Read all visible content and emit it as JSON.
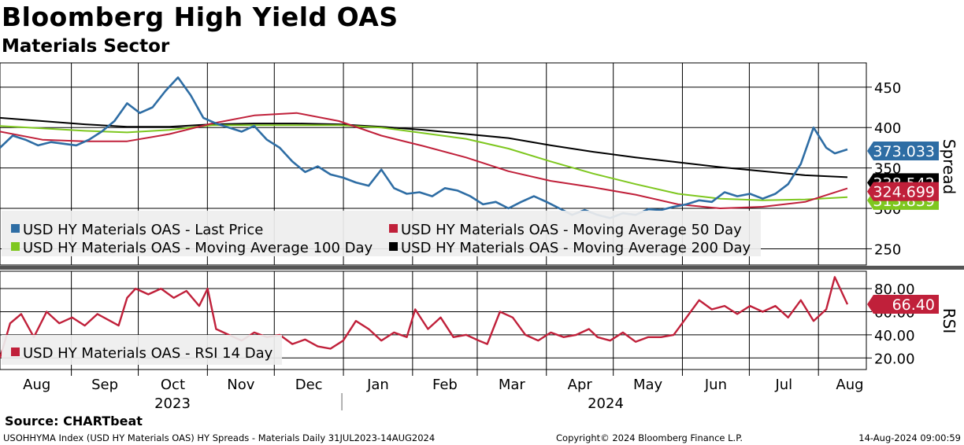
{
  "header": {
    "title": "Bloomberg High Yield OAS",
    "subtitle": "Materials Sector"
  },
  "source": "Source: CHARTbeat",
  "footer": {
    "left": "USOHHYMA Index (USD HY Materials OAS) HY Spreads - Materials  Daily 31JUL2023-14AUG2024",
    "middle": "Copyright© 2024 Bloomberg Finance L.P.",
    "right": "14-Aug-2024 09:00:59"
  },
  "colors": {
    "last": "#2e6da4",
    "ma50": "#c0203a",
    "ma100": "#7ec71f",
    "ma200": "#000000",
    "rsi": "#c0203a"
  },
  "chart_data": [
    {
      "type": "line",
      "panel": "main",
      "ylabel": "Spread",
      "ylim": [
        230,
        480
      ],
      "yticks": [
        250,
        300,
        350,
        400,
        450
      ],
      "x_start": "2023-07-31",
      "x_end": "2024-08-14",
      "month_labels": [
        "Aug",
        "Sep",
        "Oct",
        "Nov",
        "Dec",
        "Jan",
        "Feb",
        "Mar",
        "Apr",
        "May",
        "Jun",
        "Jul",
        "Aug"
      ],
      "year_labels": [
        "2023",
        "2024"
      ],
      "legend": [
        "USD HY Materials OAS - Last Price",
        "USD HY Materials OAS - Moving Average 50 Day",
        "USD HY Materials OAS - Moving Average 100 Day",
        "USD HY Materials OAS - Moving Average 200 Day"
      ],
      "last_values": [
        {
          "label": "373.033",
          "series": "last"
        },
        {
          "label": "338.542",
          "series": "ma200"
        },
        {
          "label": "324.699",
          "series": "ma50"
        },
        {
          "label": "313.839",
          "series": "ma100"
        }
      ],
      "series": [
        {
          "name": "USD HY Materials OAS - Last Price",
          "key": "last",
          "x": [
            0,
            0.015,
            0.03,
            0.045,
            0.06,
            0.075,
            0.09,
            0.105,
            0.12,
            0.135,
            0.15,
            0.165,
            0.18,
            0.195,
            0.21,
            0.225,
            0.24,
            0.255,
            0.27,
            0.285,
            0.3,
            0.315,
            0.33,
            0.345,
            0.36,
            0.375,
            0.39,
            0.405,
            0.42,
            0.435,
            0.45,
            0.465,
            0.48,
            0.495,
            0.51,
            0.525,
            0.54,
            0.555,
            0.57,
            0.585,
            0.6,
            0.615,
            0.63,
            0.645,
            0.66,
            0.675,
            0.69,
            0.705,
            0.72,
            0.735,
            0.75,
            0.765,
            0.78,
            0.795,
            0.81,
            0.825,
            0.84,
            0.855,
            0.87,
            0.885,
            0.9,
            0.915,
            0.93,
            0.945,
            0.96,
            0.975,
            0.985,
            1.0
          ],
          "values": [
            375,
            390,
            385,
            378,
            382,
            380,
            378,
            385,
            395,
            408,
            430,
            418,
            425,
            445,
            462,
            440,
            412,
            405,
            400,
            395,
            402,
            385,
            375,
            358,
            345,
            352,
            342,
            338,
            332,
            328,
            348,
            325,
            318,
            320,
            315,
            325,
            322,
            315,
            305,
            308,
            300,
            308,
            315,
            308,
            300,
            292,
            298,
            292,
            288,
            294,
            292,
            299,
            298,
            302,
            305,
            310,
            308,
            320,
            315,
            318,
            312,
            318,
            330,
            355,
            400,
            375,
            368,
            373.033
          ]
        },
        {
          "name": "USD HY Materials OAS - Moving Average 50 Day",
          "key": "ma50",
          "x": [
            0,
            0.05,
            0.1,
            0.15,
            0.2,
            0.25,
            0.3,
            0.35,
            0.4,
            0.45,
            0.5,
            0.55,
            0.6,
            0.65,
            0.7,
            0.75,
            0.8,
            0.85,
            0.9,
            0.95,
            1.0
          ],
          "values": [
            395,
            385,
            383,
            383,
            392,
            405,
            415,
            418,
            408,
            390,
            377,
            363,
            346,
            334,
            326,
            317,
            305,
            300,
            302,
            308,
            324.699
          ]
        },
        {
          "name": "USD HY Materials OAS - Moving Average 100 Day",
          "key": "ma100",
          "x": [
            0,
            0.05,
            0.1,
            0.15,
            0.2,
            0.25,
            0.3,
            0.35,
            0.4,
            0.45,
            0.5,
            0.55,
            0.6,
            0.65,
            0.7,
            0.75,
            0.8,
            0.85,
            0.9,
            0.95,
            1.0
          ],
          "values": [
            402,
            399,
            396,
            394,
            397,
            403,
            403,
            403,
            403,
            400,
            393,
            386,
            374,
            358,
            343,
            330,
            318,
            312,
            310,
            311,
            313.839
          ]
        },
        {
          "name": "USD HY Materials OAS - Moving Average 200 Day",
          "key": "ma200",
          "x": [
            0,
            0.05,
            0.1,
            0.15,
            0.2,
            0.25,
            0.3,
            0.35,
            0.4,
            0.45,
            0.5,
            0.55,
            0.6,
            0.65,
            0.7,
            0.75,
            0.8,
            0.85,
            0.9,
            0.95,
            1.0
          ],
          "values": [
            412,
            408,
            404,
            401,
            401,
            404,
            405,
            405,
            404,
            401,
            397,
            392,
            387,
            378,
            370,
            363,
            357,
            351,
            346,
            341,
            338.542
          ]
        }
      ]
    },
    {
      "type": "line",
      "panel": "rsi",
      "ylabel": "RSI",
      "ylim": [
        10,
        95
      ],
      "yticks": [
        "20.00",
        "40.00",
        "60.00",
        "80.00"
      ],
      "legend": [
        "USD HY Materials OAS - RSI 14 Day"
      ],
      "last_value": "66.40",
      "series": [
        {
          "name": "USD HY Materials OAS - RSI 14 Day",
          "key": "rsi",
          "x": [
            0,
            0.012,
            0.025,
            0.04,
            0.055,
            0.07,
            0.085,
            0.1,
            0.115,
            0.13,
            0.14,
            0.15,
            0.16,
            0.175,
            0.19,
            0.205,
            0.22,
            0.235,
            0.245,
            0.255,
            0.27,
            0.285,
            0.3,
            0.315,
            0.33,
            0.345,
            0.36,
            0.375,
            0.39,
            0.405,
            0.42,
            0.435,
            0.45,
            0.465,
            0.48,
            0.49,
            0.505,
            0.52,
            0.535,
            0.55,
            0.565,
            0.575,
            0.59,
            0.605,
            0.62,
            0.635,
            0.65,
            0.665,
            0.68,
            0.695,
            0.705,
            0.72,
            0.735,
            0.75,
            0.765,
            0.78,
            0.795,
            0.81,
            0.825,
            0.84,
            0.855,
            0.87,
            0.885,
            0.9,
            0.915,
            0.93,
            0.945,
            0.96,
            0.975,
            0.985,
            1.0
          ],
          "values": [
            20,
            50,
            58,
            38,
            60,
            50,
            55,
            48,
            58,
            52,
            48,
            72,
            80,
            75,
            80,
            72,
            78,
            65,
            80,
            45,
            40,
            35,
            42,
            38,
            40,
            32,
            36,
            30,
            28,
            35,
            52,
            45,
            35,
            42,
            38,
            62,
            45,
            55,
            38,
            40,
            35,
            32,
            60,
            55,
            40,
            35,
            42,
            38,
            40,
            45,
            38,
            35,
            42,
            34,
            38,
            38,
            40,
            55,
            70,
            62,
            65,
            58,
            65,
            60,
            65,
            55,
            70,
            52,
            62,
            90,
            66.4
          ]
        }
      ]
    }
  ]
}
